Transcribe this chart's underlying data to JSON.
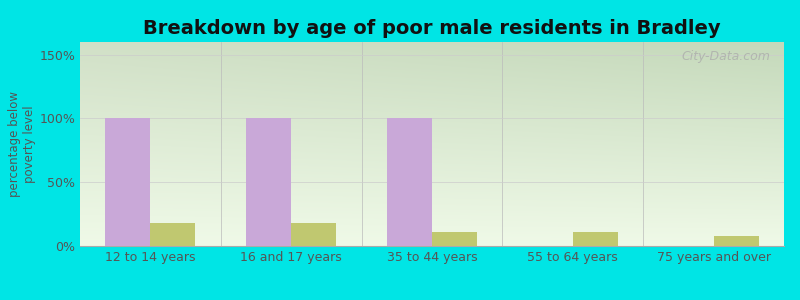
{
  "title": "Breakdown by age of poor male residents in Bradley",
  "ylabel": "percentage below\npoverty level",
  "categories": [
    "12 to 14 years",
    "16 and 17 years",
    "35 to 44 years",
    "55 to 64 years",
    "75 years and over"
  ],
  "bradley_values": [
    100,
    100,
    100,
    0,
    0
  ],
  "sc_values": [
    18,
    18,
    11,
    11,
    8
  ],
  "bradley_color": "#c9a8d8",
  "sc_color": "#c0c870",
  "bg_color": "#00e5e5",
  "grad_top_left": "#d0ddb0",
  "grad_top_right": "#c8d8c0",
  "grad_bottom": "#f0f8e8",
  "ylim": [
    0,
    160
  ],
  "yticks": [
    0,
    50,
    100,
    150
  ],
  "ytick_labels": [
    "0%",
    "50%",
    "100%",
    "150%"
  ],
  "bar_width": 0.32,
  "title_fontsize": 14,
  "axis_label_fontsize": 8.5,
  "tick_fontsize": 9,
  "legend_fontsize": 10,
  "watermark": "City-Data.com"
}
